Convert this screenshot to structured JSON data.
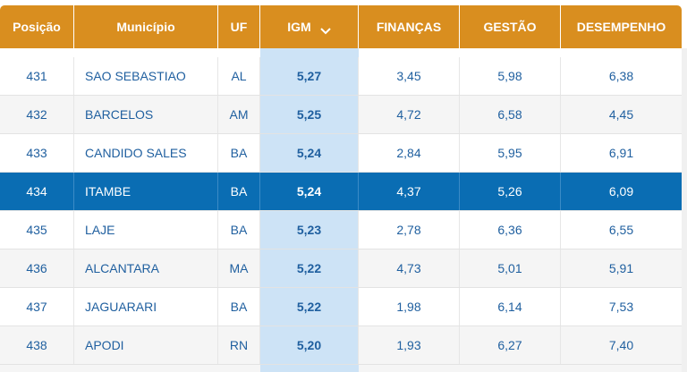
{
  "columns": [
    "Posição",
    "Município",
    "UF",
    "IGM",
    "FINANÇAS",
    "GESTÃO",
    "DESEMPENHO"
  ],
  "sorted_column": "IGM",
  "rows": [
    {
      "pos": "431",
      "mun": "SAO SEBASTIAO",
      "uf": "AL",
      "igm": "5,27",
      "fin": "3,45",
      "ges": "5,98",
      "des": "6,38"
    },
    {
      "pos": "432",
      "mun": "BARCELOS",
      "uf": "AM",
      "igm": "5,25",
      "fin": "4,72",
      "ges": "6,58",
      "des": "4,45"
    },
    {
      "pos": "433",
      "mun": "CANDIDO SALES",
      "uf": "BA",
      "igm": "5,24",
      "fin": "2,84",
      "ges": "5,95",
      "des": "6,91"
    },
    {
      "pos": "434",
      "mun": "ITAMBE",
      "uf": "BA",
      "igm": "5,24",
      "fin": "4,37",
      "ges": "5,26",
      "des": "6,09"
    },
    {
      "pos": "435",
      "mun": "LAJE",
      "uf": "BA",
      "igm": "5,23",
      "fin": "2,78",
      "ges": "6,36",
      "des": "6,55"
    },
    {
      "pos": "436",
      "mun": "ALCANTARA",
      "uf": "MA",
      "igm": "5,22",
      "fin": "4,73",
      "ges": "5,01",
      "des": "5,91"
    },
    {
      "pos": "437",
      "mun": "JAGUARARI",
      "uf": "BA",
      "igm": "5,22",
      "fin": "1,98",
      "ges": "6,14",
      "des": "7,53"
    },
    {
      "pos": "438",
      "mun": "APODI",
      "uf": "RN",
      "igm": "5,20",
      "fin": "1,93",
      "ges": "6,27",
      "des": "7,40"
    }
  ],
  "selected_position": "434",
  "colors": {
    "header_bg": "#d98e1f",
    "header_text": "#ffffff",
    "cell_text": "#1f5f9f",
    "igm_column_bg": "#cde3f6",
    "selected_row_bg": "#0a6db3",
    "alt_row_bg": "#f5f5f5"
  },
  "icons": {
    "sort": "chevron-down-icon"
  }
}
